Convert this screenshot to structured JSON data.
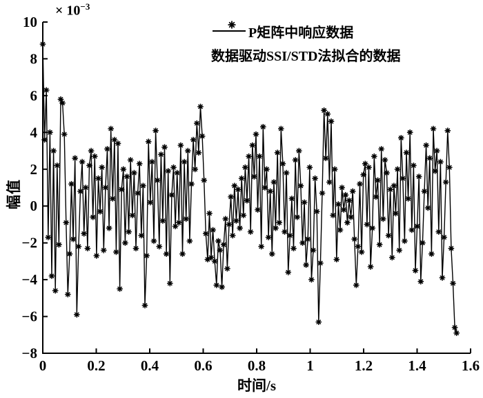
{
  "figure": {
    "background": "#ffffff",
    "ink_color": "#000000"
  },
  "legend": {
    "items": [
      {
        "marker": "line",
        "label": "P矩阵中响应数据"
      },
      {
        "marker": "asterisk",
        "label": "数据驱动SSI/STD法拟合的数据"
      }
    ]
  },
  "chart_data": {
    "type": "line",
    "title": "",
    "xlabel": "时间/s",
    "ylabel": "幅值",
    "y_multiplier": {
      "base": "× 10",
      "exponent": "−3"
    },
    "xlim": [
      0,
      1.6
    ],
    "ylim": [
      -8,
      10
    ],
    "x_ticks": [
      0,
      0.2,
      0.4,
      0.6,
      0.8,
      1,
      1.2,
      1.4,
      1.6
    ],
    "x_tick_labels": [
      "0",
      "0.2",
      "0.4",
      "0.6",
      "0.8",
      "1",
      "1.2",
      "1.4",
      "1.6"
    ],
    "y_ticks": [
      10,
      8,
      6,
      4,
      2,
      0,
      -2,
      -4,
      -6,
      -8
    ],
    "y_tick_labels": [
      "10",
      "8",
      "6",
      "4",
      "2",
      "0",
      "−2",
      "−4",
      "−6",
      "−8"
    ],
    "grid": false,
    "legend_position": "top-inside",
    "series": [
      {
        "name": "P矩阵中响应数据",
        "style": "solid-line"
      },
      {
        "name": "数据驱动SSI/STD法拟合的数据",
        "style": "asterisk-markers-on-same-points"
      }
    ],
    "x_start": 0,
    "dt": 0.0067,
    "value_unit": 0.001,
    "values_e3": [
      8.8,
      3.6,
      6.3,
      -1.7,
      4.0,
      -3.8,
      3.0,
      -4.6,
      2.2,
      -2.1,
      5.8,
      5.6,
      3.9,
      -0.9,
      -4.8,
      -2.6,
      1.2,
      -1.8,
      2.6,
      -5.9,
      -2.2,
      0.8,
      2.4,
      -1.5,
      1.0,
      -2.3,
      2.2,
      3.0,
      -0.6,
      2.7,
      -2.7,
      1.5,
      -0.3,
      2.1,
      -2.4,
      1.0,
      3.1,
      -1.2,
      4.2,
      0.4,
      3.6,
      -2.5,
      3.4,
      -4.5,
      0.9,
      2.0,
      -2.0,
      1.6,
      -1.4,
      2.5,
      -0.5,
      1.8,
      -2.3,
      0.7,
      2.3,
      -1.6,
      1.1,
      -5.4,
      -2.7,
      3.5,
      0.2,
      2.4,
      -1.9,
      4.1,
      1.4,
      -2.2,
      2.8,
      -0.8,
      3.2,
      -2.6,
      1.9,
      -4.2,
      0.6,
      2.1,
      -1.1,
      1.8,
      -0.9,
      3.3,
      -2.6,
      2.4,
      -0.7,
      3.0,
      -1.9,
      1.2,
      3.6,
      2.0,
      4.5,
      2.9,
      5.4,
      3.8,
      1.4,
      -1.5,
      -2.9,
      -0.4,
      -2.8,
      -1.3,
      -3.0,
      -4.3,
      -1.9,
      -2.4,
      -4.4,
      -2.1,
      -0.7,
      -3.4,
      -1.0,
      0.5,
      -1.6,
      1.1,
      -0.8,
      0.9,
      -1.2,
      1.5,
      -0.5,
      2.1,
      0.3,
      2.7,
      -1.4,
      3.3,
      1.6,
      3.9,
      -0.2,
      2.7,
      -2.2,
      4.3,
      1.0,
      2.0,
      -1.7,
      0.8,
      -2.6,
      1.3,
      -1.2,
      2.9,
      -0.9,
      4.2,
      2.3,
      -1.4,
      1.8,
      -3.6,
      -1.6,
      0.4,
      -2.3,
      2.5,
      -0.6,
      3.0,
      1.1,
      -2.0,
      0.2,
      -3.2,
      -1.8,
      2.1,
      -4.0,
      -2.4,
      1.5,
      -0.3,
      -6.3,
      -3.1,
      0.7,
      5.2,
      2.6,
      5.0,
      1.3,
      4.6,
      -0.5,
      2.0,
      -2.9,
      0.1,
      -1.3,
      1.0,
      -0.2,
      0.6,
      -0.9,
      0.3,
      -0.6,
      0.8,
      -1.8,
      -4.3,
      -2.2,
      1.2,
      -2.5,
      1.7,
      2.3,
      -1.0,
      2.1,
      -3.3,
      -1.2,
      2.7,
      0.5,
      1.4,
      -2.1,
      3.1,
      -0.7,
      2.5,
      1.8,
      -1.6,
      0.9,
      -2.8,
      1.1,
      -0.4,
      2.0,
      -2.4,
      3.7,
      1.5,
      -1.9,
      2.9,
      0.4,
      4.0,
      -1.3,
      2.2,
      -3.5,
      -1.1,
      1.6,
      -4.1,
      -2.0,
      0.8,
      3.3,
      -0.1,
      2.6,
      -2.6,
      4.2,
      1.9,
      3.0,
      -1.4,
      2.4,
      -3.9,
      -1.7,
      1.3,
      4.1,
      2.1,
      -2.3,
      -4.2,
      -6.6,
      -6.9
    ]
  }
}
